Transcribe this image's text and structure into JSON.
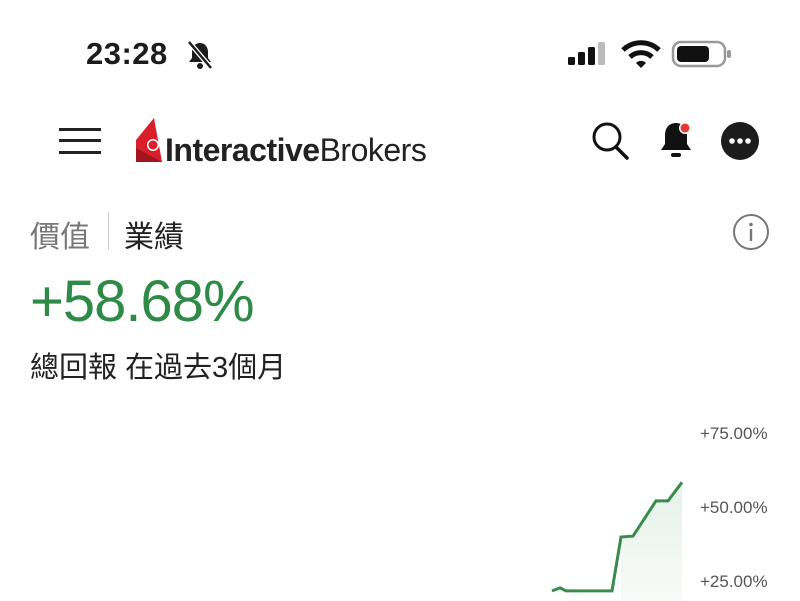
{
  "status_bar": {
    "time": "23:28",
    "icons": [
      "bell-slash-icon",
      "cellular-signal-icon",
      "wifi-icon",
      "battery-icon"
    ]
  },
  "header": {
    "logo_bold": "Interactive",
    "logo_light": "Brokers",
    "icons": [
      "menu-icon",
      "search-icon",
      "notification-bell-icon",
      "more-icon"
    ],
    "notification_dot_color": "#e53935"
  },
  "tabs": [
    {
      "label": "價值",
      "active": false
    },
    {
      "label": "業績",
      "active": true
    }
  ],
  "performance": {
    "value": "+58.68%",
    "subtitle": "總回報 在過去3個月",
    "color": "#2e8a47"
  },
  "chart_data": {
    "type": "area",
    "y_tick_labels": [
      "+75.00%",
      "+50.00%",
      "+25.00%"
    ],
    "y_ticks": [
      75,
      50,
      25
    ],
    "series": [
      {
        "values": [
          22,
          23,
          22,
          22,
          40.2,
          40.5,
          52.4,
          52.4,
          58.68
        ]
      }
    ],
    "line_color": "#3a8a4c"
  }
}
